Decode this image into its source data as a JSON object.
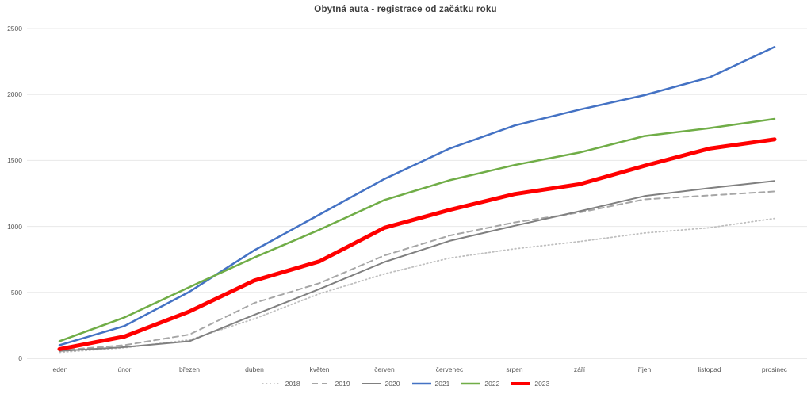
{
  "title": "Obytná auta - registrace od začátku roku",
  "chart_data": {
    "type": "line",
    "title": "Obytná auta - registrace od začátku roku",
    "categories": [
      "leden",
      "únor",
      "březen",
      "duben",
      "květen",
      "červen",
      "červenec",
      "srpen",
      "září",
      "říjen",
      "listopad",
      "prosinec"
    ],
    "series": [
      {
        "name": "2018",
        "color": "#BFBFBF",
        "dash": "dotted",
        "width": 1.8,
        "values": [
          45,
          80,
          140,
          300,
          490,
          640,
          760,
          830,
          885,
          950,
          990,
          1060
        ]
      },
      {
        "name": "2019",
        "color": "#A6A6A6",
        "dash": "dashed",
        "width": 2,
        "values": [
          60,
          100,
          180,
          420,
          570,
          780,
          930,
          1030,
          1105,
          1205,
          1235,
          1265
        ]
      },
      {
        "name": "2020",
        "color": "#808080",
        "dash": "solid",
        "width": 2,
        "values": [
          55,
          85,
          130,
          330,
          525,
          730,
          890,
          1005,
          1115,
          1230,
          1290,
          1345
        ]
      },
      {
        "name": "2021",
        "color": "#4472C4",
        "dash": "solid",
        "width": 2.5,
        "values": [
          100,
          245,
          505,
          820,
          1090,
          1360,
          1590,
          1765,
          1885,
          1995,
          2130,
          2360
        ]
      },
      {
        "name": "2022",
        "color": "#70AD47",
        "dash": "solid",
        "width": 2.5,
        "values": [
          130,
          310,
          540,
          765,
          975,
          1200,
          1350,
          1465,
          1560,
          1685,
          1745,
          1815
        ]
      },
      {
        "name": "2023",
        "color": "#FF0000",
        "dash": "solid",
        "width": 5,
        "values": [
          70,
          165,
          355,
          590,
          735,
          990,
          1125,
          1245,
          1320,
          1460,
          1590,
          1660
        ]
      }
    ],
    "ylim": [
      0,
      2500
    ],
    "yticks": [
      0,
      500,
      1000,
      1500,
      2000,
      2500
    ],
    "grid": "horizontal",
    "gridline_color": "#E8E8E8",
    "axisline_color": "#D6D6D6",
    "legend_position": "bottom"
  }
}
